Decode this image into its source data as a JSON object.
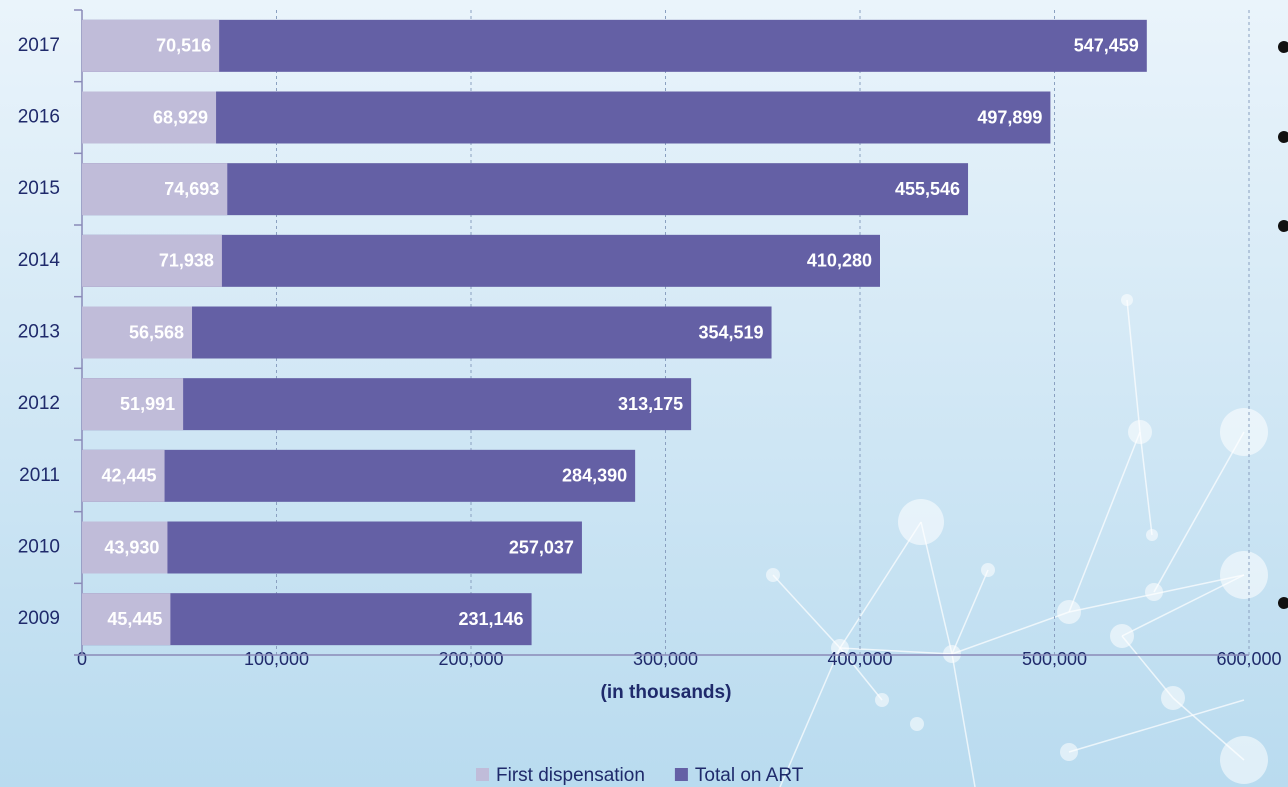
{
  "chart_data": {
    "type": "bar",
    "orientation": "horizontal",
    "overlap": true,
    "x_label": "(in thousands)",
    "categories": [
      "2017",
      "2016",
      "2015",
      "2014",
      "2013",
      "2012",
      "2011",
      "2010",
      "2009"
    ],
    "series": [
      {
        "name": "Total on ART",
        "color": "#6460a5",
        "values": [
          547459,
          497899,
          455546,
          410280,
          354519,
          313175,
          284390,
          257037,
          231146
        ],
        "value_labels": [
          "547,459",
          "497,899",
          "455,546",
          "410,280",
          "354,519",
          "313,175",
          "284,390",
          "257,037",
          "231,146"
        ]
      },
      {
        "name": "First dispensation",
        "color": "#c0bcd9",
        "values": [
          70516,
          68929,
          74693,
          71938,
          56568,
          51991,
          42445,
          43930,
          45445
        ],
        "value_labels": [
          "70,516",
          "68,929",
          "74,693",
          "71,938",
          "56,568",
          "51,991",
          "42,445",
          "43,930",
          "45,445"
        ]
      }
    ],
    "legend_order": [
      1,
      0
    ],
    "xlim": [
      0,
      600000
    ],
    "xticks": [
      0,
      {
        "value": 100000,
        "label": "100,000"
      },
      {
        "value": 200000,
        "label": "200,000"
      },
      {
        "value": 300000,
        "label": "300,000"
      },
      {
        "value": 400000,
        "label": "400,000"
      },
      {
        "value": 500000,
        "label": "500,000"
      },
      {
        "value": 600000,
        "label": "600,000"
      }
    ],
    "grid": true
  }
}
